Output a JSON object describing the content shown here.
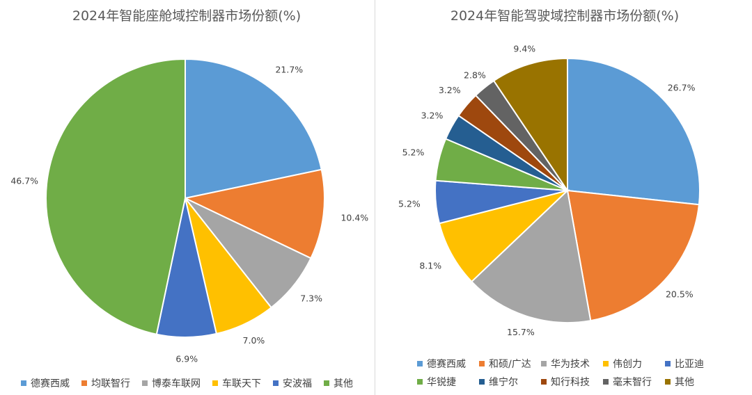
{
  "chart_data": [
    {
      "type": "pie",
      "title": "2024年智能座舱域控制器市场份额(%)",
      "categories": [
        "德赛西威",
        "均联智行",
        "博泰车联网",
        "车联天下",
        "安波福",
        "其他"
      ],
      "values": [
        21.7,
        10.4,
        7.3,
        7.0,
        6.9,
        46.7
      ],
      "value_labels": [
        "21.7%",
        "10.4%",
        "7.3%",
        "7.0%",
        "6.9%",
        "46.7%"
      ],
      "colors": [
        "#5b9bd5",
        "#ed7d31",
        "#a5a5a5",
        "#ffc000",
        "#4472c4",
        "#70ad47"
      ],
      "legend_position": "bottom"
    },
    {
      "type": "pie",
      "title": "2024年智能驾驶域控制器市场份额(%)",
      "categories": [
        "德赛西威",
        "和硕/广达",
        "华为技术",
        "伟创力",
        "比亚迪",
        "华锐捷",
        "维宁尔",
        "知行科技",
        "毫末智行",
        "其他"
      ],
      "values": [
        26.7,
        20.5,
        15.7,
        8.1,
        5.2,
        5.2,
        3.2,
        3.2,
        2.8,
        9.4
      ],
      "value_labels": [
        "26.7%",
        "20.5%",
        "15.7%",
        "8.1%",
        "5.2%",
        "5.2%",
        "3.2%",
        "3.2%",
        "2.8%",
        "9.4%"
      ],
      "colors": [
        "#5b9bd5",
        "#ed7d31",
        "#a5a5a5",
        "#ffc000",
        "#4472c4",
        "#70ad47",
        "#255e91",
        "#9e480e",
        "#636363",
        "#997300"
      ],
      "legend_position": "bottom"
    }
  ]
}
